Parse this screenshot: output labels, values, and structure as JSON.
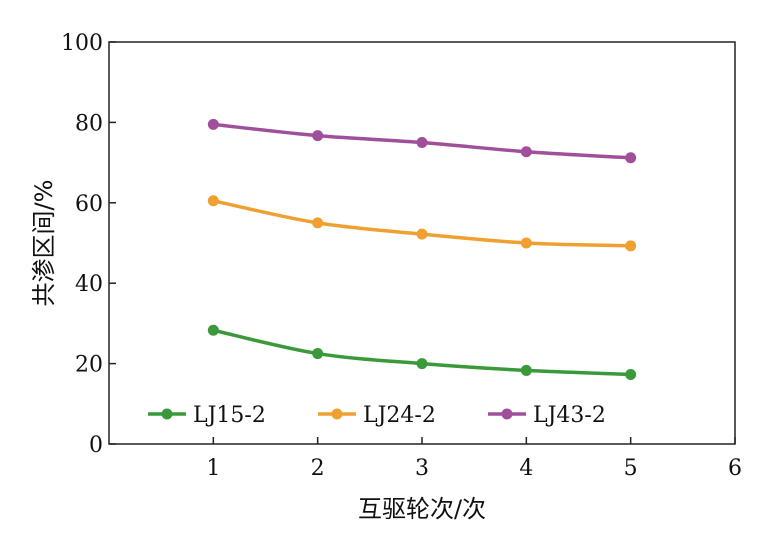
{
  "chart_data": {
    "type": "line",
    "title": "",
    "xlabel": "互驱轮次/次",
    "ylabel": "共渗区间/%",
    "xlim": [
      0,
      6
    ],
    "ylim": [
      0,
      100
    ],
    "x_ticks": [
      1,
      2,
      3,
      4,
      5,
      6
    ],
    "y_ticks": [
      0,
      20,
      40,
      60,
      80,
      100
    ],
    "grid": false,
    "legend_position": "bottom-inside",
    "x": [
      1,
      2,
      3,
      4,
      5
    ],
    "series": [
      {
        "name": "LJ15-2",
        "color": "#3a9a3a",
        "values": [
          28.3,
          22.5,
          20.0,
          18.3,
          17.3
        ]
      },
      {
        "name": "LJ24-2",
        "color": "#f0a030",
        "values": [
          60.5,
          55.0,
          52.2,
          50.0,
          49.3
        ]
      },
      {
        "name": "LJ43-2",
        "color": "#a0509a",
        "values": [
          79.5,
          76.7,
          75.0,
          72.7,
          71.2
        ]
      }
    ]
  }
}
